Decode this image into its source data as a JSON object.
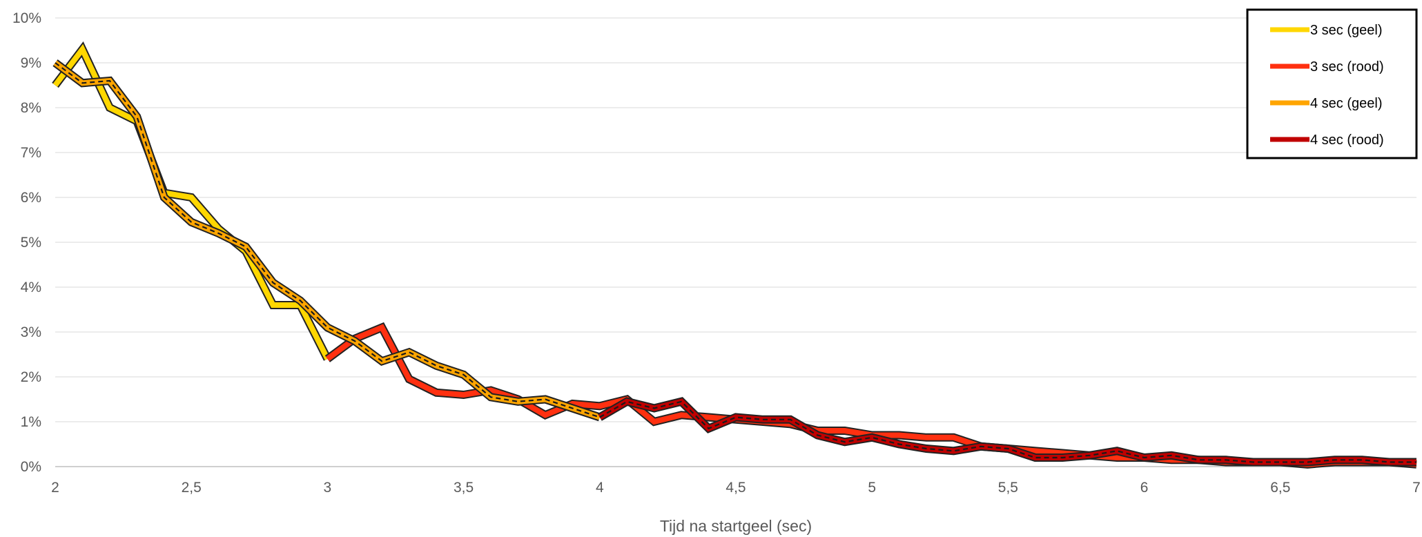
{
  "chart_data": {
    "type": "line",
    "title": "",
    "xlabel": "Tijd na startgeel (sec)",
    "ylabel": "",
    "xlim": [
      2,
      7
    ],
    "ylim": [
      0,
      0.1
    ],
    "x_ticks": [
      "2",
      "2,5",
      "3",
      "3,5",
      "4",
      "4,5",
      "5",
      "5,5",
      "6",
      "6,5",
      "7"
    ],
    "y_ticks": [
      "0%",
      "1%",
      "2%",
      "3%",
      "4%",
      "5%",
      "6%",
      "7%",
      "8%",
      "9%",
      "10%"
    ],
    "grid": true,
    "legend_position": "top-right",
    "series": [
      {
        "name": "3 sec (geel)",
        "color": "#FFD700",
        "x": [
          2.0,
          2.1,
          2.2,
          2.3,
          2.4,
          2.5,
          2.6,
          2.7,
          2.8,
          2.9,
          3.0
        ],
        "y": [
          0.085,
          0.093,
          0.08,
          0.077,
          0.061,
          0.06,
          0.053,
          0.048,
          0.036,
          0.036,
          0.024
        ]
      },
      {
        "name": "3 sec (rood)",
        "color": "#FF3010",
        "x": [
          3.0,
          3.1,
          3.2,
          3.3,
          3.4,
          3.5,
          3.6,
          3.7,
          3.8,
          3.9,
          4.0,
          4.1,
          4.2,
          4.3,
          4.4,
          4.5,
          4.6,
          4.7,
          4.8,
          4.9,
          5.0,
          5.1,
          5.2,
          5.3,
          5.4,
          5.5,
          5.6,
          5.7,
          5.8,
          5.9,
          6.0,
          6.1,
          6.2,
          6.3,
          6.4,
          6.5,
          6.6,
          6.7,
          6.8,
          6.9,
          7.0
        ],
        "y": [
          0.024,
          0.0285,
          0.031,
          0.0195,
          0.0165,
          0.016,
          0.017,
          0.015,
          0.0115,
          0.014,
          0.0135,
          0.015,
          0.01,
          0.0115,
          0.011,
          0.0105,
          0.01,
          0.0095,
          0.008,
          0.008,
          0.007,
          0.007,
          0.0065,
          0.0065,
          0.0045,
          0.004,
          0.0035,
          0.003,
          0.0025,
          0.002,
          0.002,
          0.0015,
          0.0015,
          0.001,
          0.001,
          0.001,
          0.0005,
          0.001,
          0.001,
          0.001,
          0.0005
        ]
      },
      {
        "name": "4 sec (geel)",
        "color": "#FFA500",
        "x": [
          2.0,
          2.1,
          2.2,
          2.3,
          2.4,
          2.5,
          2.6,
          2.7,
          2.8,
          2.9,
          3.0,
          3.1,
          3.2,
          3.3,
          3.4,
          3.5,
          3.6,
          3.7,
          3.8,
          3.9,
          4.0
        ],
        "y": [
          0.09,
          0.0855,
          0.086,
          0.078,
          0.06,
          0.0545,
          0.052,
          0.049,
          0.041,
          0.037,
          0.031,
          0.028,
          0.0235,
          0.0255,
          0.0225,
          0.0205,
          0.0155,
          0.0145,
          0.015,
          0.013,
          0.011
        ]
      },
      {
        "name": "4 sec (rood)",
        "color": "#C00000",
        "x": [
          4.0,
          4.1,
          4.2,
          4.3,
          4.4,
          4.5,
          4.6,
          4.7,
          4.8,
          4.9,
          5.0,
          5.1,
          5.2,
          5.3,
          5.4,
          5.5,
          5.6,
          5.7,
          5.8,
          5.9,
          6.0,
          6.1,
          6.2,
          6.3,
          6.4,
          6.5,
          6.6,
          6.7,
          6.8,
          6.9,
          7.0
        ],
        "y": [
          0.011,
          0.0145,
          0.013,
          0.0145,
          0.0085,
          0.011,
          0.0105,
          0.0105,
          0.007,
          0.0055,
          0.0065,
          0.005,
          0.004,
          0.0035,
          0.0045,
          0.004,
          0.002,
          0.002,
          0.0025,
          0.0035,
          0.002,
          0.0025,
          0.0015,
          0.0015,
          0.001,
          0.001,
          0.001,
          0.0015,
          0.0015,
          0.001,
          0.001
        ]
      }
    ]
  }
}
